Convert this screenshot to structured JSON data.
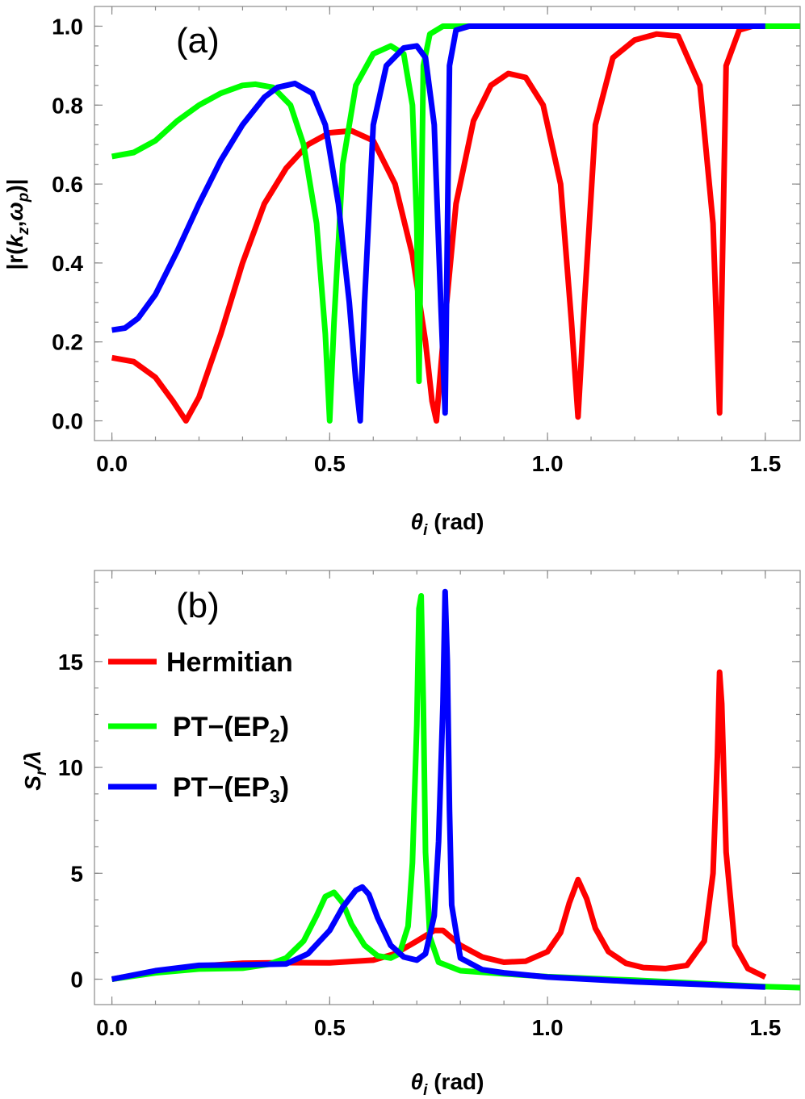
{
  "colors": {
    "hermitian": "#ff0000",
    "ep2": "#00ff00",
    "ep3": "#0000ff"
  },
  "chart_data": [
    {
      "type": "line",
      "panel_tag": "(a)",
      "xlabel_sym": "θ",
      "xlabel_sub": "i",
      "xlabel_unit": " (rad)",
      "ylabel_pre": "|r(",
      "ylabel_k": "k",
      "ylabel_ksub": "z",
      "ylabel_comma": ",",
      "ylabel_w": "ω",
      "ylabel_wsub": "p",
      "ylabel_post": ")|",
      "xlim": [
        -0.04,
        1.58
      ],
      "ylim": [
        -0.05,
        1.05
      ],
      "xticks": [
        "0.0",
        "0.5",
        "1.0",
        "1.5"
      ],
      "yticks": [
        "0.0",
        "0.2",
        "0.4",
        "0.6",
        "0.8",
        "1.0"
      ],
      "grid": false,
      "series": [
        {
          "name": "Hermitian",
          "color": "#ff0000",
          "x": [
            0,
            0.05,
            0.1,
            0.14,
            0.17,
            0.2,
            0.25,
            0.3,
            0.35,
            0.4,
            0.45,
            0.5,
            0.55,
            0.6,
            0.65,
            0.69,
            0.72,
            0.735,
            0.745,
            0.76,
            0.79,
            0.83,
            0.87,
            0.91,
            0.95,
            0.99,
            1.03,
            1.055,
            1.07,
            1.085,
            1.11,
            1.15,
            1.2,
            1.25,
            1.3,
            1.35,
            1.38,
            1.395,
            1.41,
            1.44,
            1.47,
            1.5
          ],
          "y": [
            0.16,
            0.15,
            0.11,
            0.05,
            0.0,
            0.06,
            0.22,
            0.4,
            0.55,
            0.64,
            0.7,
            0.73,
            0.735,
            0.71,
            0.6,
            0.42,
            0.2,
            0.05,
            0.0,
            0.2,
            0.55,
            0.76,
            0.85,
            0.88,
            0.87,
            0.8,
            0.6,
            0.25,
            0.01,
            0.3,
            0.75,
            0.92,
            0.965,
            0.98,
            0.975,
            0.85,
            0.5,
            0.02,
            0.9,
            0.99,
            1.0,
            1.0
          ]
        },
        {
          "name": "PT-(EP2)",
          "color": "#00ff00",
          "x": [
            0,
            0.05,
            0.1,
            0.15,
            0.2,
            0.25,
            0.3,
            0.33,
            0.37,
            0.41,
            0.44,
            0.47,
            0.49,
            0.5,
            0.51,
            0.53,
            0.56,
            0.6,
            0.64,
            0.67,
            0.69,
            0.7,
            0.705,
            0.715,
            0.73,
            0.76,
            0.8,
            0.9,
            1.0,
            1.2,
            1.4,
            1.58
          ],
          "y": [
            0.67,
            0.68,
            0.71,
            0.76,
            0.8,
            0.83,
            0.85,
            0.853,
            0.845,
            0.8,
            0.7,
            0.5,
            0.22,
            0.0,
            0.25,
            0.65,
            0.85,
            0.93,
            0.95,
            0.93,
            0.8,
            0.5,
            0.1,
            0.9,
            0.98,
            1.0,
            1.0,
            1.0,
            1.0,
            1.0,
            1.0,
            1.0
          ]
        },
        {
          "name": "PT-(EP3)",
          "color": "#0000ff",
          "x": [
            0,
            0.03,
            0.06,
            0.1,
            0.15,
            0.2,
            0.25,
            0.3,
            0.35,
            0.38,
            0.42,
            0.46,
            0.49,
            0.52,
            0.545,
            0.56,
            0.57,
            0.58,
            0.6,
            0.63,
            0.67,
            0.7,
            0.72,
            0.74,
            0.755,
            0.765,
            0.775,
            0.79,
            0.82,
            0.9,
            1.0,
            1.2,
            1.5
          ],
          "y": [
            0.23,
            0.235,
            0.26,
            0.32,
            0.43,
            0.55,
            0.66,
            0.75,
            0.82,
            0.845,
            0.855,
            0.83,
            0.75,
            0.55,
            0.3,
            0.1,
            0.0,
            0.3,
            0.75,
            0.9,
            0.945,
            0.95,
            0.92,
            0.75,
            0.3,
            0.02,
            0.9,
            0.99,
            1.0,
            1.0,
            1.0,
            1.0,
            1.0
          ]
        }
      ]
    },
    {
      "type": "line",
      "panel_tag": "(b)",
      "xlabel_sym": "θ",
      "xlabel_sub": "i",
      "xlabel_unit": " (rad)",
      "ylabel_s": "S",
      "ylabel_sub": "r",
      "ylabel_rest": "/λ",
      "xlim": [
        -0.04,
        1.58
      ],
      "ylim": [
        -1.2,
        19.3
      ],
      "xticks": [
        "0.0",
        "0.5",
        "1.0",
        "1.5"
      ],
      "yticks": [
        "0",
        "5",
        "10",
        "15"
      ],
      "grid": false,
      "legend_placement": "left",
      "legend": [
        {
          "label": "Hermitian",
          "color": "#ff0000"
        },
        {
          "label": "PT−(EP",
          "sub": "2",
          "close": ")",
          "color": "#00ff00"
        },
        {
          "label": "PT−(EP",
          "sub": "3",
          "close": ")",
          "color": "#0000ff"
        }
      ],
      "series": [
        {
          "name": "Hermitian",
          "color": "#ff0000",
          "x": [
            0,
            0.1,
            0.2,
            0.3,
            0.4,
            0.5,
            0.6,
            0.65,
            0.7,
            0.74,
            0.76,
            0.8,
            0.85,
            0.9,
            0.95,
            1.0,
            1.03,
            1.05,
            1.07,
            1.09,
            1.11,
            1.14,
            1.18,
            1.22,
            1.27,
            1.32,
            1.36,
            1.38,
            1.39,
            1.395,
            1.4,
            1.41,
            1.43,
            1.46,
            1.5
          ],
          "y": [
            0,
            0.35,
            0.62,
            0.75,
            0.78,
            0.77,
            0.9,
            1.2,
            1.8,
            2.3,
            2.3,
            1.6,
            1.05,
            0.8,
            0.85,
            1.3,
            2.2,
            3.6,
            4.7,
            3.8,
            2.4,
            1.3,
            0.75,
            0.55,
            0.5,
            0.65,
            1.8,
            5.0,
            10.5,
            14.5,
            13.0,
            6.0,
            1.6,
            0.5,
            0.1
          ]
        },
        {
          "name": "PT-(EP2)",
          "color": "#00ff00",
          "x": [
            0,
            0.1,
            0.2,
            0.3,
            0.36,
            0.4,
            0.44,
            0.47,
            0.49,
            0.51,
            0.53,
            0.55,
            0.58,
            0.61,
            0.64,
            0.66,
            0.68,
            0.69,
            0.7,
            0.705,
            0.71,
            0.715,
            0.72,
            0.73,
            0.75,
            0.8,
            0.9,
            1.0,
            1.2,
            1.5,
            1.58
          ],
          "y": [
            0,
            0.3,
            0.48,
            0.52,
            0.7,
            1.0,
            1.8,
            3.0,
            3.9,
            4.1,
            3.6,
            2.6,
            1.6,
            1.1,
            1.0,
            1.2,
            2.5,
            5.5,
            12.0,
            17.5,
            18.1,
            13.0,
            6.0,
            2.0,
            0.8,
            0.4,
            0.25,
            0.12,
            -0.05,
            -0.35,
            -0.4
          ]
        },
        {
          "name": "PT-(EP3)",
          "color": "#0000ff",
          "x": [
            0,
            0.1,
            0.2,
            0.3,
            0.4,
            0.45,
            0.5,
            0.53,
            0.56,
            0.575,
            0.59,
            0.61,
            0.64,
            0.67,
            0.7,
            0.72,
            0.74,
            0.75,
            0.76,
            0.765,
            0.77,
            0.775,
            0.78,
            0.8,
            0.85,
            0.9,
            1.0,
            1.2,
            1.5
          ],
          "y": [
            0,
            0.4,
            0.65,
            0.68,
            0.72,
            1.2,
            2.3,
            3.4,
            4.2,
            4.35,
            4.0,
            2.9,
            1.6,
            1.05,
            0.9,
            1.2,
            3.0,
            6.5,
            13.0,
            18.3,
            15.0,
            8.0,
            3.5,
            1.0,
            0.45,
            0.3,
            0.1,
            -0.12,
            -0.37
          ]
        }
      ]
    }
  ]
}
